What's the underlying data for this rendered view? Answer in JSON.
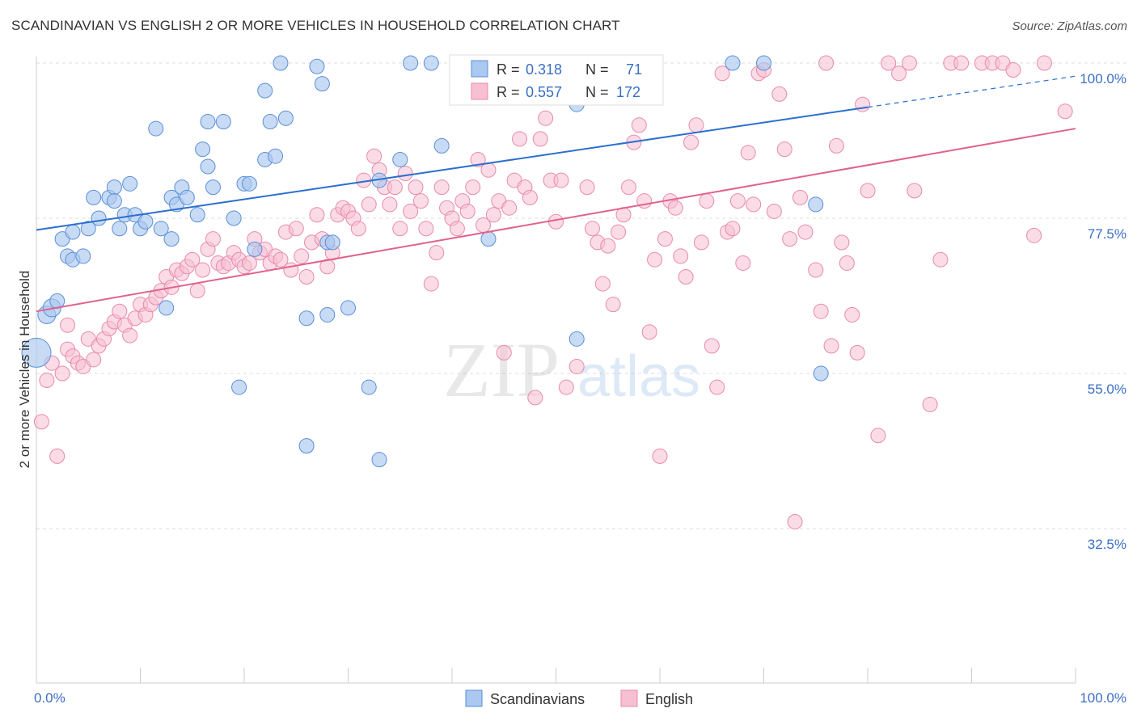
{
  "title": "SCANDINAVIAN VS ENGLISH 2 OR MORE VEHICLES IN HOUSEHOLD CORRELATION CHART",
  "source": "Source: ZipAtlas.com",
  "watermark": {
    "zip": "ZIP",
    "atlas": "atlas"
  },
  "stats": {
    "r_label": "R =",
    "n_label": "N =",
    "scandinavians": {
      "r": "0.318",
      "n": "71"
    },
    "english": {
      "r": "0.557",
      "n": "172"
    }
  },
  "colors": {
    "scandinavians_fill": "#aac8f0",
    "scandinavians_stroke": "#5b8fd8",
    "scandinavians_line": "#2c6fce",
    "english_fill": "#f7bfd2",
    "english_stroke": "#e88aab",
    "english_line": "#e0628f",
    "tick_label": "#3a6fc4"
  },
  "chart_data": {
    "type": "scatter",
    "title": "SCANDINAVIAN VS ENGLISH 2 OR MORE VEHICLES IN HOUSEHOLD CORRELATION CHART",
    "xlabel": "",
    "ylabel": "2 or more Vehicles in Household",
    "xlim": [
      0,
      100
    ],
    "ylim": [
      10,
      100
    ],
    "x_tick_labels": [
      "0.0%",
      "100.0%"
    ],
    "y_ticks": [
      100.0,
      77.5,
      55.0,
      32.5
    ],
    "y_tick_labels": [
      "100.0%",
      "77.5%",
      "55.0%",
      "32.5%"
    ],
    "grid": true,
    "legend_position": "bottom-center",
    "series": [
      {
        "name": "Scandinavians",
        "trend": {
          "x0": 0,
          "y0": 75.8,
          "x1": 80,
          "y1": 93.6,
          "dashed_to_x": 100,
          "dashed_to_y": 98.1
        },
        "points": [
          [
            0,
            58
          ],
          [
            1,
            63.5
          ],
          [
            1.5,
            64.5
          ],
          [
            2,
            65.5
          ],
          [
            2.5,
            74.5
          ],
          [
            3,
            72
          ],
          [
            3.5,
            71.5
          ],
          [
            3.5,
            75.5
          ],
          [
            4.5,
            72
          ],
          [
            5,
            76
          ],
          [
            5.5,
            80.5
          ],
          [
            6,
            77.5
          ],
          [
            7,
            80.5
          ],
          [
            7.5,
            82
          ],
          [
            7.5,
            80
          ],
          [
            8,
            76
          ],
          [
            8.5,
            78
          ],
          [
            9,
            82.5
          ],
          [
            9.5,
            78
          ],
          [
            10,
            76
          ],
          [
            10.5,
            77
          ],
          [
            11.5,
            90.5
          ],
          [
            12,
            76
          ],
          [
            12.5,
            64.5
          ],
          [
            13,
            74.5
          ],
          [
            13,
            80.5
          ],
          [
            13.5,
            79.5
          ],
          [
            14,
            82
          ],
          [
            14.5,
            80.5
          ],
          [
            15.5,
            78
          ],
          [
            16,
            87.5
          ],
          [
            16.5,
            85
          ],
          [
            16.5,
            91.5
          ],
          [
            17,
            82
          ],
          [
            18,
            91.5
          ],
          [
            19,
            77.5
          ],
          [
            19.5,
            53
          ],
          [
            20,
            82.5
          ],
          [
            20.5,
            82.5
          ],
          [
            21,
            73
          ],
          [
            22,
            96
          ],
          [
            22,
            86
          ],
          [
            22.5,
            91.5
          ],
          [
            23,
            86.5
          ],
          [
            23.5,
            100
          ],
          [
            24,
            92
          ],
          [
            26,
            63
          ],
          [
            26,
            44.5
          ],
          [
            27,
            99.5
          ],
          [
            27.5,
            97
          ],
          [
            28,
            63.5
          ],
          [
            28,
            74
          ],
          [
            28.5,
            74
          ],
          [
            30,
            64.5
          ],
          [
            32,
            53
          ],
          [
            33,
            42.5
          ],
          [
            36,
            100
          ],
          [
            38,
            100
          ],
          [
            39,
            88
          ],
          [
            42,
            100
          ],
          [
            43.5,
            74.5
          ],
          [
            46,
            100
          ],
          [
            48,
            100
          ],
          [
            52,
            60
          ],
          [
            52,
            94
          ],
          [
            67,
            100
          ],
          [
            70,
            100
          ],
          [
            75,
            79.5
          ],
          [
            75.5,
            55
          ],
          [
            33,
            83
          ],
          [
            35,
            86
          ]
        ]
      },
      {
        "name": "English",
        "trend": {
          "x0": 0,
          "y0": 64.0,
          "x1": 100,
          "y1": 90.5
        },
        "points": [
          [
            0.5,
            48
          ],
          [
            1,
            54
          ],
          [
            1.5,
            56.5
          ],
          [
            2,
            43
          ],
          [
            2.5,
            55
          ],
          [
            3,
            58.5
          ],
          [
            3,
            62
          ],
          [
            3.5,
            57.5
          ],
          [
            4,
            56.5
          ],
          [
            4.5,
            56
          ],
          [
            5,
            60
          ],
          [
            5.5,
            57
          ],
          [
            6,
            59
          ],
          [
            6.5,
            60
          ],
          [
            7,
            61.5
          ],
          [
            7.5,
            62.5
          ],
          [
            8,
            64
          ],
          [
            8.5,
            62
          ],
          [
            9,
            60.5
          ],
          [
            9.5,
            63
          ],
          [
            10,
            65
          ],
          [
            10.5,
            63.5
          ],
          [
            11,
            65
          ],
          [
            11.5,
            66
          ],
          [
            12,
            67
          ],
          [
            12.5,
            69
          ],
          [
            13,
            67.5
          ],
          [
            13.5,
            70
          ],
          [
            14,
            69.5
          ],
          [
            14.5,
            70.5
          ],
          [
            15,
            71.5
          ],
          [
            15.5,
            67
          ],
          [
            16,
            70
          ],
          [
            16.5,
            73
          ],
          [
            17,
            74.5
          ],
          [
            17.5,
            71
          ],
          [
            18,
            70.5
          ],
          [
            18.5,
            71
          ],
          [
            19,
            72.5
          ],
          [
            19.5,
            71.5
          ],
          [
            20,
            70.5
          ],
          [
            20.5,
            71
          ],
          [
            21,
            74.5
          ],
          [
            21.5,
            72.5
          ],
          [
            22,
            73
          ],
          [
            22.5,
            71
          ],
          [
            23,
            72
          ],
          [
            23.5,
            71.5
          ],
          [
            24,
            75.5
          ],
          [
            24.5,
            70
          ],
          [
            25,
            76
          ],
          [
            25.5,
            72
          ],
          [
            26,
            69
          ],
          [
            26.5,
            74
          ],
          [
            27,
            78
          ],
          [
            27.5,
            74.5
          ],
          [
            28,
            70.5
          ],
          [
            28.5,
            72.5
          ],
          [
            29,
            78
          ],
          [
            29.5,
            79
          ],
          [
            30,
            78.5
          ],
          [
            30.5,
            77.5
          ],
          [
            31,
            76
          ],
          [
            31.5,
            83
          ],
          [
            32,
            79.5
          ],
          [
            32.5,
            86.5
          ],
          [
            33,
            84.5
          ],
          [
            33.5,
            82
          ],
          [
            34,
            79.5
          ],
          [
            34.5,
            82
          ],
          [
            35,
            76
          ],
          [
            35.5,
            84
          ],
          [
            36,
            78.5
          ],
          [
            36.5,
            82
          ],
          [
            37,
            80
          ],
          [
            37.5,
            76
          ],
          [
            38,
            68
          ],
          [
            38.5,
            72.5
          ],
          [
            39,
            82
          ],
          [
            39.5,
            79
          ],
          [
            40,
            77.5
          ],
          [
            40.5,
            76
          ],
          [
            41,
            80
          ],
          [
            41.5,
            78.5
          ],
          [
            42,
            82
          ],
          [
            42.5,
            86
          ],
          [
            43,
            76.5
          ],
          [
            43.5,
            84.5
          ],
          [
            44,
            78
          ],
          [
            44.5,
            80
          ],
          [
            45,
            58
          ],
          [
            45.5,
            79
          ],
          [
            46,
            83
          ],
          [
            46.5,
            89
          ],
          [
            47,
            82
          ],
          [
            47.5,
            80.5
          ],
          [
            48,
            51.5
          ],
          [
            48.5,
            89
          ],
          [
            49,
            92
          ],
          [
            49.5,
            83
          ],
          [
            50,
            77
          ],
          [
            50.5,
            83
          ],
          [
            51,
            53
          ],
          [
            52,
            56
          ],
          [
            53,
            82
          ],
          [
            53.5,
            76
          ],
          [
            54,
            74
          ],
          [
            54.5,
            68
          ],
          [
            55,
            73.5
          ],
          [
            55.5,
            65
          ],
          [
            56,
            75.5
          ],
          [
            56.5,
            78
          ],
          [
            57,
            82
          ],
          [
            57.5,
            88.5
          ],
          [
            58,
            91
          ],
          [
            58.5,
            80
          ],
          [
            59,
            61
          ],
          [
            59.5,
            71.5
          ],
          [
            60,
            43
          ],
          [
            60.5,
            74.5
          ],
          [
            61,
            80
          ],
          [
            61.5,
            79
          ],
          [
            62,
            72
          ],
          [
            62.5,
            69
          ],
          [
            63,
            88.5
          ],
          [
            63.5,
            91
          ],
          [
            64,
            74
          ],
          [
            64.5,
            80
          ],
          [
            65,
            59
          ],
          [
            65.5,
            53
          ],
          [
            66,
            98.5
          ],
          [
            66.5,
            75.5
          ],
          [
            67,
            76
          ],
          [
            67.5,
            80
          ],
          [
            68,
            71
          ],
          [
            68.5,
            87
          ],
          [
            69,
            79.5
          ],
          [
            69.5,
            98.5
          ],
          [
            70,
            99
          ],
          [
            71,
            78.5
          ],
          [
            71.5,
            95.5
          ],
          [
            72,
            87.5
          ],
          [
            72.5,
            74.5
          ],
          [
            73,
            33.5
          ],
          [
            73.5,
            80.5
          ],
          [
            74,
            75.5
          ],
          [
            75,
            70
          ],
          [
            75.5,
            64
          ],
          [
            76,
            100
          ],
          [
            76.5,
            59
          ],
          [
            77,
            88
          ],
          [
            77.5,
            74
          ],
          [
            78,
            71
          ],
          [
            78.5,
            63.5
          ],
          [
            79,
            58
          ],
          [
            79.5,
            94
          ],
          [
            80,
            81.5
          ],
          [
            81,
            46
          ],
          [
            82,
            100
          ],
          [
            83,
            98.5
          ],
          [
            84,
            100
          ],
          [
            84.5,
            81.5
          ],
          [
            86,
            50.5
          ],
          [
            87,
            71.5
          ],
          [
            88,
            100
          ],
          [
            89,
            100
          ],
          [
            91,
            100
          ],
          [
            92,
            100
          ],
          [
            93,
            100
          ],
          [
            94,
            99
          ],
          [
            96,
            75
          ],
          [
            97,
            100
          ],
          [
            99,
            93
          ]
        ]
      }
    ]
  }
}
